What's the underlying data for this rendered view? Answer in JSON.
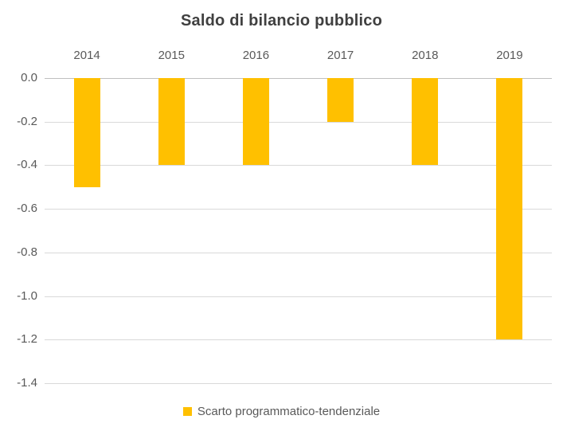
{
  "chart_data": {
    "type": "bar",
    "title": "Saldo di bilancio pubblico",
    "categories": [
      "2014",
      "2015",
      "2016",
      "2017",
      "2018",
      "2019"
    ],
    "series": [
      {
        "name": "Scarto programmatico-tendenziale",
        "values": [
          -0.5,
          -0.4,
          -0.4,
          -0.2,
          -0.4,
          -1.2
        ]
      }
    ],
    "xlabel": "",
    "ylabel": "",
    "ylim": [
      -1.4,
      0.0
    ],
    "ytick_step": 0.2,
    "yticks": [
      "0.0",
      "-0.2",
      "-0.4",
      "-0.6",
      "-0.8",
      "-1.0",
      "-1.2",
      "-1.4"
    ],
    "grid": true,
    "legend_position": "bottom",
    "category_labels_position": "top",
    "colors": {
      "bar": "#FFC000",
      "title_text": "#404040",
      "axis_text": "#595959",
      "gridline": "#D9D9D9",
      "zero_line": "#BFBFBF"
    }
  },
  "legend": {
    "label": "Scarto programmatico-tendenziale",
    "swatch_color": "#FFC000"
  }
}
